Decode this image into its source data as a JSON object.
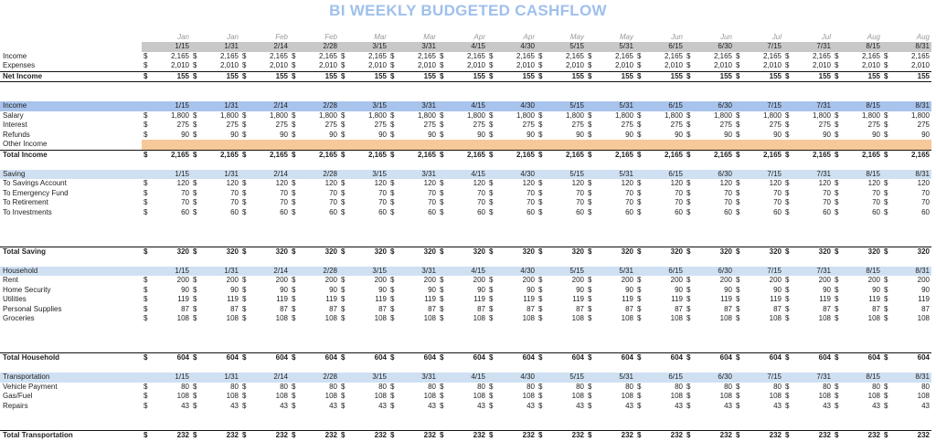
{
  "title": "BI WEEKLY BUDGETED CASHFLOW",
  "currency": "$",
  "months": [
    "Jan",
    "Jan",
    "Feb",
    "Feb",
    "Mar",
    "Mar",
    "Apr",
    "Apr",
    "May",
    "May",
    "Jun",
    "Jun",
    "Jul",
    "Jul",
    "Aug",
    "Aug"
  ],
  "dates": [
    "1/15",
    "1/31",
    "2/14",
    "2/28",
    "3/15",
    "3/31",
    "4/15",
    "4/30",
    "5/15",
    "5/31",
    "6/15",
    "6/30",
    "7/15",
    "7/31",
    "8/15",
    "8/31"
  ],
  "summary": {
    "rows": [
      {
        "label": "Income",
        "values": [
          "2,165",
          "2,165",
          "2,165",
          "2,165",
          "2,165",
          "2,165",
          "2,165",
          "2,165",
          "2,165",
          "2,165",
          "2,165",
          "2,165",
          "2,165",
          "2,165",
          "2,165",
          "2,165"
        ]
      },
      {
        "label": "Expenses",
        "values": [
          "2,010",
          "2,010",
          "2,010",
          "2,010",
          "2,010",
          "2,010",
          "2,010",
          "2,010",
          "2,010",
          "2,010",
          "2,010",
          "2,010",
          "2,010",
          "2,010",
          "2,010",
          "2,010"
        ]
      }
    ],
    "net": {
      "label": "Net Income",
      "values": [
        "155",
        "155",
        "155",
        "155",
        "155",
        "155",
        "155",
        "155",
        "155",
        "155",
        "155",
        "155",
        "155",
        "155",
        "155",
        "155"
      ]
    }
  },
  "sections": [
    {
      "name": "Income",
      "style": "income",
      "rows": [
        {
          "label": "Salary",
          "values": [
            "1,800",
            "1,800",
            "1,800",
            "1,800",
            "1,800",
            "1,800",
            "1,800",
            "1,800",
            "1,800",
            "1,800",
            "1,800",
            "1,800",
            "1,800",
            "1,800",
            "1,800",
            "1,800"
          ]
        },
        {
          "label": "Interest",
          "values": [
            "275",
            "275",
            "275",
            "275",
            "275",
            "275",
            "275",
            "275",
            "275",
            "275",
            "275",
            "275",
            "275",
            "275",
            "275",
            "275"
          ]
        },
        {
          "label": "Refunds",
          "values": [
            "90",
            "90",
            "90",
            "90",
            "90",
            "90",
            "90",
            "90",
            "90",
            "90",
            "90",
            "90",
            "90",
            "90",
            "90",
            "90"
          ]
        },
        {
          "label": "Other Income",
          "values": null,
          "highlight": true
        }
      ],
      "blank_after": 0,
      "total": {
        "label": "Total Income",
        "values": [
          "2,165",
          "2,165",
          "2,165",
          "2,165",
          "2,165",
          "2,165",
          "2,165",
          "2,165",
          "2,165",
          "2,165",
          "2,165",
          "2,165",
          "2,165",
          "2,165",
          "2,165",
          "2,165"
        ]
      }
    },
    {
      "name": "Saving",
      "style": "",
      "rows": [
        {
          "label": "To Savings Account",
          "values": [
            "120",
            "120",
            "120",
            "120",
            "120",
            "120",
            "120",
            "120",
            "120",
            "120",
            "120",
            "120",
            "120",
            "120",
            "120",
            "120"
          ]
        },
        {
          "label": "To Emergency Fund",
          "values": [
            "70",
            "70",
            "70",
            "70",
            "70",
            "70",
            "70",
            "70",
            "70",
            "70",
            "70",
            "70",
            "70",
            "70",
            "70",
            "70"
          ]
        },
        {
          "label": "To Retirement",
          "values": [
            "70",
            "70",
            "70",
            "70",
            "70",
            "70",
            "70",
            "70",
            "70",
            "70",
            "70",
            "70",
            "70",
            "70",
            "70",
            "70"
          ]
        },
        {
          "label": "To Investments",
          "values": [
            "60",
            "60",
            "60",
            "60",
            "60",
            "60",
            "60",
            "60",
            "60",
            "60",
            "60",
            "60",
            "60",
            "60",
            "60",
            "60"
          ]
        }
      ],
      "blank_after": 3,
      "total": {
        "label": "Total Saving",
        "values": [
          "320",
          "320",
          "320",
          "320",
          "320",
          "320",
          "320",
          "320",
          "320",
          "320",
          "320",
          "320",
          "320",
          "320",
          "320",
          "320"
        ]
      }
    },
    {
      "name": "Household",
      "style": "",
      "rows": [
        {
          "label": "Rent",
          "values": [
            "200",
            "200",
            "200",
            "200",
            "200",
            "200",
            "200",
            "200",
            "200",
            "200",
            "200",
            "200",
            "200",
            "200",
            "200",
            "200"
          ]
        },
        {
          "label": "Home Security",
          "values": [
            "90",
            "90",
            "90",
            "90",
            "90",
            "90",
            "90",
            "90",
            "90",
            "90",
            "90",
            "90",
            "90",
            "90",
            "90",
            "90"
          ]
        },
        {
          "label": "Utilities",
          "values": [
            "119",
            "119",
            "119",
            "119",
            "119",
            "119",
            "119",
            "119",
            "119",
            "119",
            "119",
            "119",
            "119",
            "119",
            "119",
            "119"
          ]
        },
        {
          "label": "Personal Supplies",
          "values": [
            "87",
            "87",
            "87",
            "87",
            "87",
            "87",
            "87",
            "87",
            "87",
            "87",
            "87",
            "87",
            "87",
            "87",
            "87",
            "87"
          ]
        },
        {
          "label": "Groceries",
          "values": [
            "108",
            "108",
            "108",
            "108",
            "108",
            "108",
            "108",
            "108",
            "108",
            "108",
            "108",
            "108",
            "108",
            "108",
            "108",
            "108"
          ]
        }
      ],
      "blank_after": 3,
      "total": {
        "label": "Total Household",
        "values": [
          "604",
          "604",
          "604",
          "604",
          "604",
          "604",
          "604",
          "604",
          "604",
          "604",
          "604",
          "604",
          "604",
          "604",
          "604",
          "604"
        ]
      }
    },
    {
      "name": "Transportation",
      "style": "",
      "rows": [
        {
          "label": "Vehicle Payment",
          "values": [
            "80",
            "80",
            "80",
            "80",
            "80",
            "80",
            "80",
            "80",
            "80",
            "80",
            "80",
            "80",
            "80",
            "80",
            "80",
            "80"
          ]
        },
        {
          "label": "Gas/Fuel",
          "values": [
            "108",
            "108",
            "108",
            "108",
            "108",
            "108",
            "108",
            "108",
            "108",
            "108",
            "108",
            "108",
            "108",
            "108",
            "108",
            "108"
          ]
        },
        {
          "label": "Repairs",
          "values": [
            "43",
            "43",
            "43",
            "43",
            "43",
            "43",
            "43",
            "43",
            "43",
            "43",
            "43",
            "43",
            "43",
            "43",
            "43",
            "43"
          ]
        }
      ],
      "blank_after": 2,
      "total": {
        "label": "Total Transportation",
        "values": [
          "232",
          "232",
          "232",
          "232",
          "232",
          "232",
          "232",
          "232",
          "232",
          "232",
          "232",
          "232",
          "232",
          "232",
          "232",
          "232"
        ]
      }
    }
  ]
}
